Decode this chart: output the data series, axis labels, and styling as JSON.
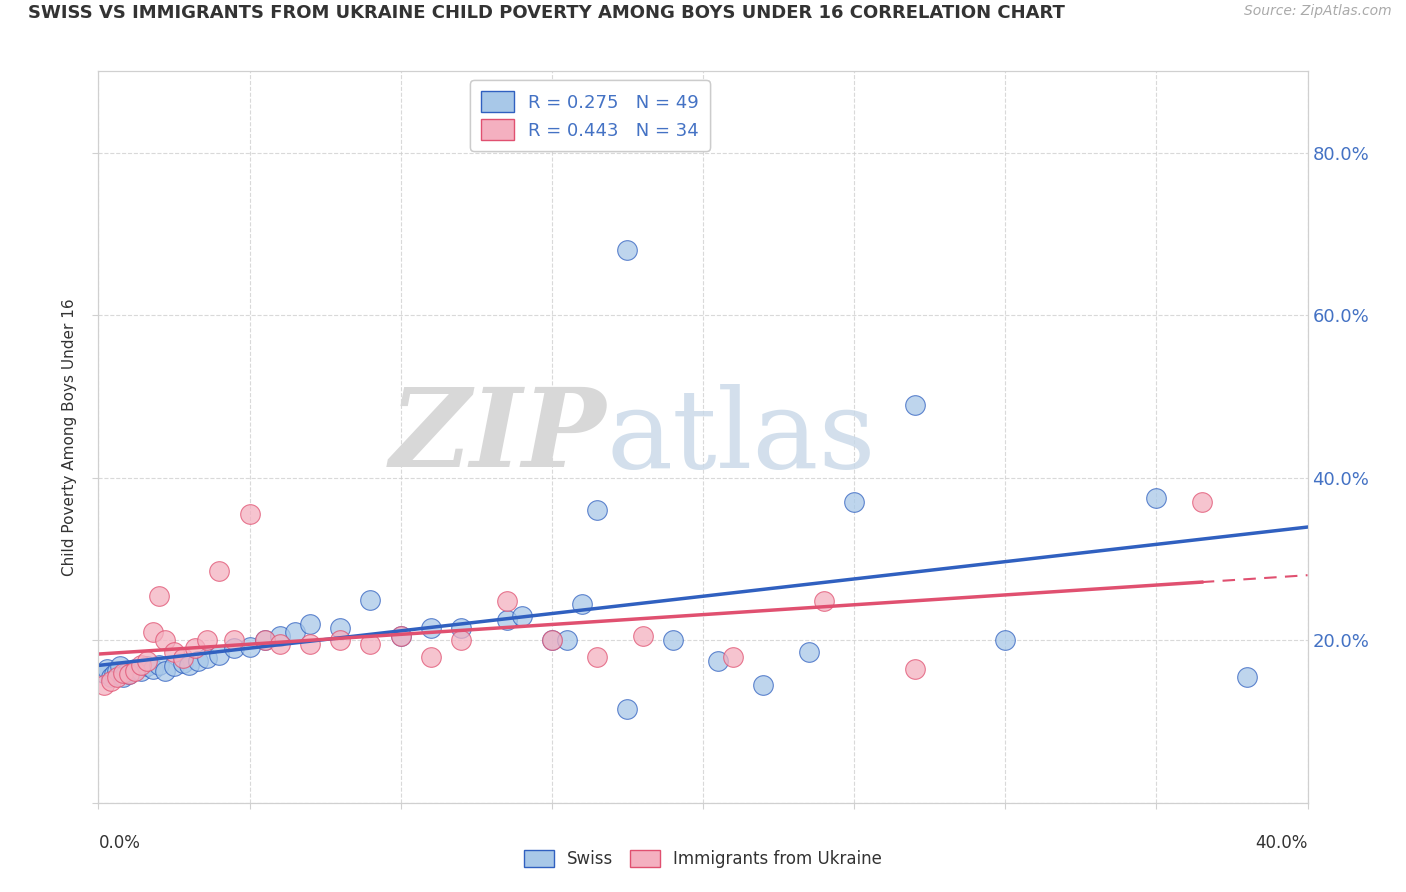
{
  "title": "SWISS VS IMMIGRANTS FROM UKRAINE CHILD POVERTY AMONG BOYS UNDER 16 CORRELATION CHART",
  "source": "Source: ZipAtlas.com",
  "ylabel": "Child Poverty Among Boys Under 16",
  "right_yticks": [
    "80.0%",
    "60.0%",
    "40.0%",
    "20.0%"
  ],
  "right_ytick_vals": [
    0.8,
    0.6,
    0.4,
    0.2
  ],
  "watermark_zip": "ZIP",
  "watermark_atlas": "atlas",
  "swiss_color": "#a8c8e8",
  "ukraine_color": "#f4b0c0",
  "swiss_line_color": "#3060c0",
  "ukraine_line_color": "#e05070",
  "swiss_scatter_x": [
    0.002,
    0.003,
    0.004,
    0.005,
    0.006,
    0.007,
    0.008,
    0.009,
    0.01,
    0.012,
    0.014,
    0.016,
    0.018,
    0.02,
    0.022,
    0.025,
    0.028,
    0.03,
    0.033,
    0.036,
    0.04,
    0.045,
    0.05,
    0.055,
    0.06,
    0.065,
    0.07,
    0.08,
    0.09,
    0.1,
    0.11,
    0.12,
    0.135,
    0.15,
    0.16,
    0.175,
    0.19,
    0.205,
    0.22,
    0.235,
    0.27,
    0.3,
    0.35,
    0.38,
    0.14,
    0.155,
    0.165,
    0.25,
    0.175
  ],
  "swiss_scatter_y": [
    0.16,
    0.165,
    0.155,
    0.158,
    0.162,
    0.168,
    0.155,
    0.16,
    0.158,
    0.165,
    0.162,
    0.168,
    0.165,
    0.17,
    0.162,
    0.168,
    0.172,
    0.17,
    0.175,
    0.178,
    0.182,
    0.19,
    0.192,
    0.2,
    0.205,
    0.21,
    0.22,
    0.215,
    0.25,
    0.205,
    0.215,
    0.215,
    0.225,
    0.2,
    0.245,
    0.115,
    0.2,
    0.175,
    0.145,
    0.185,
    0.49,
    0.2,
    0.375,
    0.155,
    0.23,
    0.2,
    0.36,
    0.37,
    0.68
  ],
  "ukraine_scatter_x": [
    0.002,
    0.004,
    0.006,
    0.008,
    0.01,
    0.012,
    0.014,
    0.016,
    0.018,
    0.02,
    0.022,
    0.025,
    0.028,
    0.032,
    0.036,
    0.04,
    0.045,
    0.05,
    0.055,
    0.06,
    0.07,
    0.08,
    0.09,
    0.1,
    0.11,
    0.12,
    0.135,
    0.15,
    0.165,
    0.18,
    0.21,
    0.24,
    0.27,
    0.365
  ],
  "ukraine_scatter_y": [
    0.145,
    0.15,
    0.155,
    0.16,
    0.158,
    0.162,
    0.17,
    0.175,
    0.21,
    0.255,
    0.2,
    0.185,
    0.178,
    0.19,
    0.2,
    0.285,
    0.2,
    0.355,
    0.2,
    0.195,
    0.195,
    0.2,
    0.195,
    0.205,
    0.18,
    0.2,
    0.248,
    0.2,
    0.18,
    0.205,
    0.18,
    0.248,
    0.165,
    0.37
  ],
  "xlim": [
    0.0,
    0.4
  ],
  "ylim": [
    0.0,
    0.9
  ],
  "background_color": "#ffffff",
  "grid_color": "#d0d0d0",
  "title_fontsize": 13,
  "source_fontsize": 10,
  "ytick_fontsize": 13,
  "legend_fontsize": 13
}
